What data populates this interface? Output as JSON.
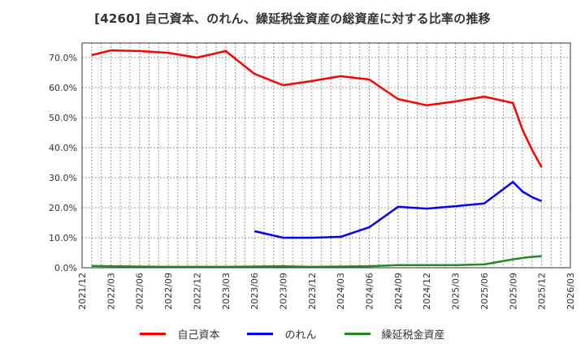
{
  "title": "[4260]  自己資本、のれん、繰延税金資産の総資産に対する比率の推移",
  "legend": [
    {
      "label": "自己資本",
      "color": "#ff0000"
    },
    {
      "label": "のれん",
      "color": "#0000ff"
    },
    {
      "label": "繰延税金資産",
      "color": "#228b22"
    }
  ],
  "chart_data": {
    "type": "line",
    "title": "[4260]  自己資本、のれん、繰延税金資産の総資産に対する比率の推移",
    "xlabel": "",
    "ylabel": "",
    "ylim": [
      0,
      75
    ],
    "grid": true,
    "legend_position": "bottom",
    "x_ticks": [
      "2021/12",
      "2022/03",
      "2022/06",
      "2022/09",
      "2022/12",
      "2023/03",
      "2023/06",
      "2023/09",
      "2023/12",
      "2024/03",
      "2024/06",
      "2024/09",
      "2024/12",
      "2025/03",
      "2025/06",
      "2025/09",
      "2025/12",
      "2026/03"
    ],
    "y_ticks": [
      "0.0%",
      "10.0%",
      "20.0%",
      "30.0%",
      "40.0%",
      "50.0%",
      "60.0%",
      "70.0%"
    ],
    "series": [
      {
        "name": "自己資本",
        "color": "#ff0000",
        "points": [
          {
            "x": 0.33,
            "y": 70.8
          },
          {
            "x": 1,
            "y": 72.4
          },
          {
            "x": 2,
            "y": 72.2
          },
          {
            "x": 3,
            "y": 71.6
          },
          {
            "x": 4,
            "y": 70.0
          },
          {
            "x": 5,
            "y": 72.2
          },
          {
            "x": 6,
            "y": 64.6
          },
          {
            "x": 7,
            "y": 60.8
          },
          {
            "x": 8,
            "y": 62.2
          },
          {
            "x": 9,
            "y": 63.8
          },
          {
            "x": 10,
            "y": 62.7
          },
          {
            "x": 11,
            "y": 56.2
          },
          {
            "x": 12,
            "y": 54.1
          },
          {
            "x": 13,
            "y": 55.4
          },
          {
            "x": 14,
            "y": 57.0
          },
          {
            "x": 15,
            "y": 54.9
          },
          {
            "x": 15.33,
            "y": 46.0
          },
          {
            "x": 15.67,
            "y": 39.2
          },
          {
            "x": 16,
            "y": 33.5
          }
        ]
      },
      {
        "name": "のれん",
        "color": "#0000ff",
        "points": [
          {
            "x": 6,
            "y": 12.2
          },
          {
            "x": 7,
            "y": 10.0
          },
          {
            "x": 8,
            "y": 10.0
          },
          {
            "x": 9,
            "y": 10.3
          },
          {
            "x": 10,
            "y": 13.5
          },
          {
            "x": 11,
            "y": 20.3
          },
          {
            "x": 12,
            "y": 19.7
          },
          {
            "x": 13,
            "y": 20.5
          },
          {
            "x": 14,
            "y": 21.4
          },
          {
            "x": 15,
            "y": 28.6
          },
          {
            "x": 15.33,
            "y": 25.4
          },
          {
            "x": 15.67,
            "y": 23.5
          },
          {
            "x": 16,
            "y": 22.2
          }
        ]
      },
      {
        "name": "繰延税金資産",
        "color": "#228b22",
        "points": [
          {
            "x": 0.33,
            "y": 0.6
          },
          {
            "x": 1,
            "y": 0.5
          },
          {
            "x": 2,
            "y": 0.4
          },
          {
            "x": 3,
            "y": 0.3
          },
          {
            "x": 4,
            "y": 0.3
          },
          {
            "x": 5,
            "y": 0.3
          },
          {
            "x": 6,
            "y": 0.4
          },
          {
            "x": 7,
            "y": 0.5
          },
          {
            "x": 8,
            "y": 0.3
          },
          {
            "x": 9,
            "y": 0.4
          },
          {
            "x": 10,
            "y": 0.5
          },
          {
            "x": 11,
            "y": 0.9
          },
          {
            "x": 12,
            "y": 0.9
          },
          {
            "x": 13,
            "y": 0.9
          },
          {
            "x": 14,
            "y": 1.1
          },
          {
            "x": 15,
            "y": 2.8
          },
          {
            "x": 15.5,
            "y": 3.5
          },
          {
            "x": 16,
            "y": 3.9
          }
        ]
      }
    ]
  }
}
